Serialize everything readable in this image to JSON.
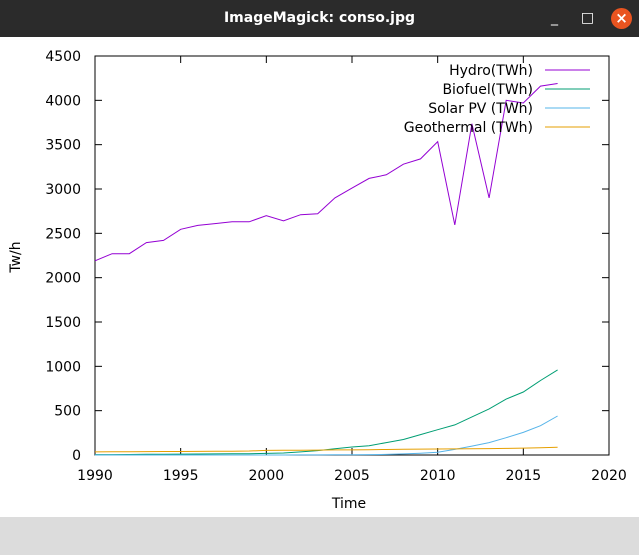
{
  "window": {
    "title": "ImageMagick: conso.jpg",
    "minimize_glyph": "_",
    "maximize_glyph": "□",
    "close_glyph": "×",
    "close_color": "#e95420"
  },
  "chart_data": {
    "type": "line",
    "title": "",
    "xlabel": "Time",
    "ylabel": "Tw/h",
    "xlim": [
      1990,
      2020
    ],
    "ylim": [
      0,
      4500
    ],
    "xticks": [
      1990,
      1995,
      2000,
      2005,
      2010,
      2015,
      2020
    ],
    "yticks": [
      0,
      500,
      1000,
      1500,
      2000,
      2500,
      3000,
      3500,
      4000,
      4500
    ],
    "grid": false,
    "legend_position": "top-right",
    "x": [
      1990,
      1991,
      1992,
      1993,
      1994,
      1995,
      1996,
      1997,
      1998,
      1999,
      2000,
      2001,
      2002,
      2003,
      2004,
      2005,
      2006,
      2007,
      2008,
      2009,
      2010,
      2011,
      2012,
      2013,
      2014,
      2015,
      2016,
      2017
    ],
    "series": [
      {
        "name": "Hydro(TWh)",
        "color": "#9400d3",
        "values": [
          2190,
          2270,
          2270,
          2395,
          2420,
          2545,
          2590,
          2610,
          2630,
          2630,
          2700,
          2640,
          2710,
          2720,
          2900,
          3010,
          3120,
          3160,
          3280,
          3340,
          3535,
          2595,
          3735,
          2900,
          4000,
          3970,
          4160,
          4190
        ]
      },
      {
        "name": "Biofuel(TWh)",
        "color": "#009e73",
        "values": [
          5,
          5,
          6,
          8,
          9,
          10,
          11,
          12,
          13,
          15,
          18,
          23,
          35,
          50,
          70,
          90,
          105,
          140,
          175,
          230,
          285,
          340,
          430,
          520,
          630,
          710,
          840,
          960
        ]
      },
      {
        "name": "Solar PV (TWh)",
        "color": "#56b4e9",
        "values": [
          0,
          0,
          0,
          0,
          0,
          0,
          0,
          0,
          0,
          0,
          0,
          0,
          1,
          1,
          2,
          3,
          5,
          7,
          12,
          20,
          32,
          63,
          100,
          140,
          195,
          255,
          330,
          440
        ]
      },
      {
        "name": "Geothermal (TWh)",
        "color": "#e69f00",
        "values": [
          35,
          36,
          37,
          38,
          39,
          40,
          41,
          42,
          43,
          45,
          52,
          53,
          54,
          55,
          57,
          58,
          60,
          62,
          64,
          66,
          68,
          69,
          70,
          72,
          74,
          78,
          82,
          88
        ]
      }
    ]
  }
}
